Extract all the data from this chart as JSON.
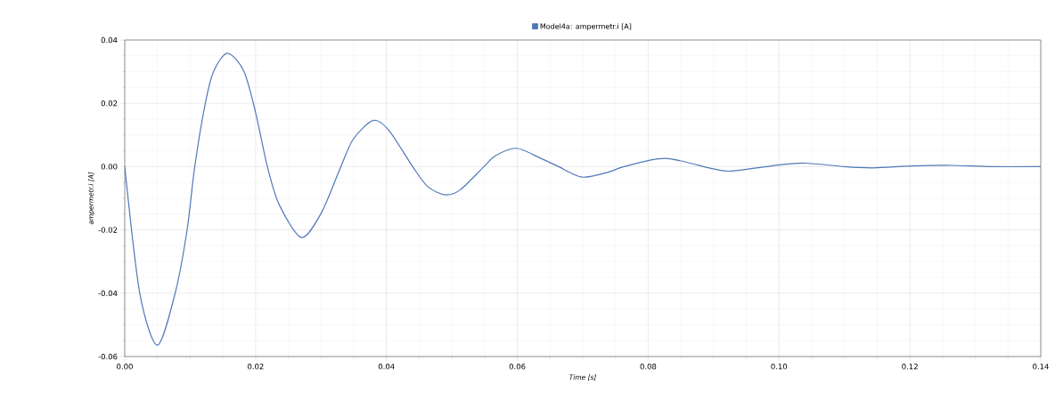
{
  "chart_data": {
    "type": "line",
    "xlabel": "Time [s]",
    "ylabel": "ampermetr.i [A]",
    "series": [
      {
        "name": "Model4a: ampermetr.i [A]",
        "color": "#4f78b8",
        "x": [
          0,
          0.0023,
          0.005,
          0.0077,
          0.0095,
          0.0107,
          0.0123,
          0.0136,
          0.0157,
          0.0182,
          0.02,
          0.0218,
          0.0236,
          0.027,
          0.03,
          0.0327,
          0.0349,
          0.038,
          0.0404,
          0.044,
          0.0463,
          0.049,
          0.0513,
          0.0549,
          0.0567,
          0.0599,
          0.0636,
          0.0663,
          0.0699,
          0.074,
          0.0763,
          0.0826,
          0.0899,
          0.0928,
          0.0999,
          0.104,
          0.1099,
          0.1144,
          0.1203,
          0.1262,
          0.1325,
          0.14
        ],
        "values": [
          0,
          -0.04,
          -0.0564,
          -0.04,
          -0.0204,
          0,
          0.0199,
          0.0302,
          0.0358,
          0.0302,
          0.0171,
          0,
          -0.012,
          -0.0224,
          -0.0148,
          -0.0017,
          0.0086,
          0.0146,
          0.0114,
          0,
          -0.0063,
          -0.0089,
          -0.0073,
          0,
          0.0035,
          0.0058,
          0.0026,
          0,
          -0.0033,
          -0.0017,
          0,
          0.0026,
          -0.0007,
          -0.0014,
          0.0005,
          0.0011,
          0,
          -0.0004,
          0.0002,
          0.0004,
          0,
          0
        ]
      }
    ],
    "xlim": [
      0,
      0.14
    ],
    "ylim": [
      -0.06,
      0.04
    ],
    "xticks": [
      {
        "value": 0,
        "label": "0.00"
      },
      {
        "value": 0.02,
        "label": "0.02"
      },
      {
        "value": 0.04,
        "label": "0.04"
      },
      {
        "value": 0.06,
        "label": "0.06"
      },
      {
        "value": 0.08,
        "label": "0.08"
      },
      {
        "value": 0.1,
        "label": "0.10"
      },
      {
        "value": 0.12,
        "label": "0.12"
      },
      {
        "value": 0.14,
        "label": "0.14"
      }
    ],
    "yticks": [
      {
        "value": -0.06,
        "label": "-0.06"
      },
      {
        "value": -0.04,
        "label": "-0.04"
      },
      {
        "value": -0.02,
        "label": "-0.02"
      },
      {
        "value": 0,
        "label": "0.00"
      },
      {
        "value": 0.02,
        "label": "0.02"
      },
      {
        "value": 0.04,
        "label": "0.04"
      }
    ],
    "grid": true,
    "legend": "top",
    "marker": "none",
    "line_style": "solid"
  }
}
